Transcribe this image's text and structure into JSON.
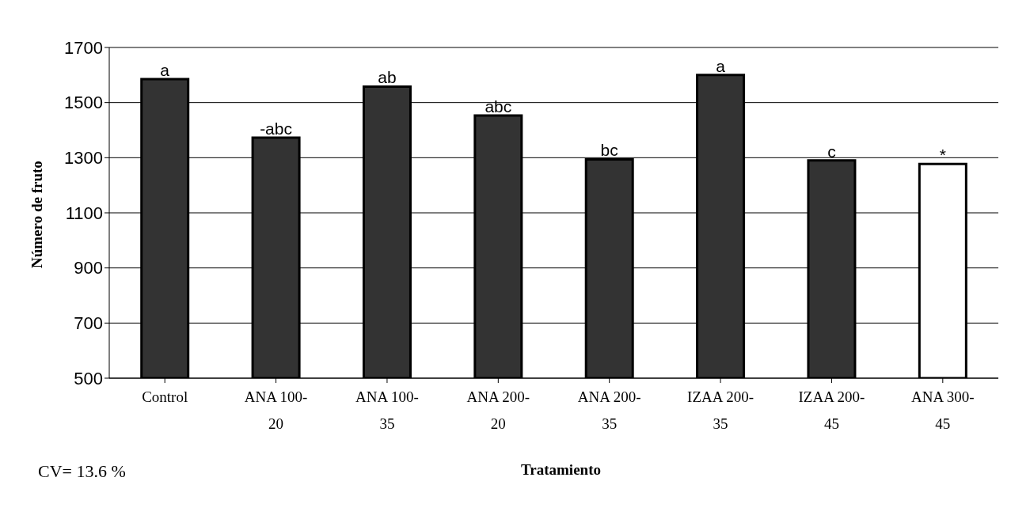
{
  "chart_data": {
    "type": "bar",
    "xlabel": "Tratamiento",
    "ylabel": "Número de fruto",
    "categories": [
      "Control",
      "ANA 100-20",
      "ANA 100-35",
      "ANA 200-20",
      "ANA 200-35",
      "IZAA 200-35",
      "IZAA 200-45",
      "ANA 300-45"
    ],
    "values": [
      1585,
      1373,
      1558,
      1453,
      1294,
      1600,
      1290,
      1277
    ],
    "colors": [
      "#333333",
      "#333333",
      "#333333",
      "#333333",
      "#333333",
      "#333333",
      "#333333",
      "#ffffff"
    ],
    "ylim": [
      500,
      1700
    ],
    "yticks": [
      500,
      700,
      900,
      1100,
      1300,
      1500,
      1700
    ],
    "grid": "y",
    "annotations": [
      {
        "text": "a",
        "x": "Control",
        "y": 1585
      },
      {
        "text": "-abc",
        "x": "ANA 100-20",
        "y": 1373
      },
      {
        "text": "ab",
        "x": "ANA 100-35",
        "y": 1558
      },
      {
        "text": "abc",
        "x": "ANA 200-20",
        "y": 1453
      },
      {
        "text": "bc",
        "x": "ANA 200-35",
        "y": 1294
      },
      {
        "text": "a",
        "x": "IZAA 200-35",
        "y": 1600
      },
      {
        "text": "c",
        "x": "IZAA 200-45",
        "y": 1290
      },
      {
        "text": "*",
        "x": "ANA 300-45",
        "y": 1277
      },
      "CV= 13.6 %"
    ]
  }
}
